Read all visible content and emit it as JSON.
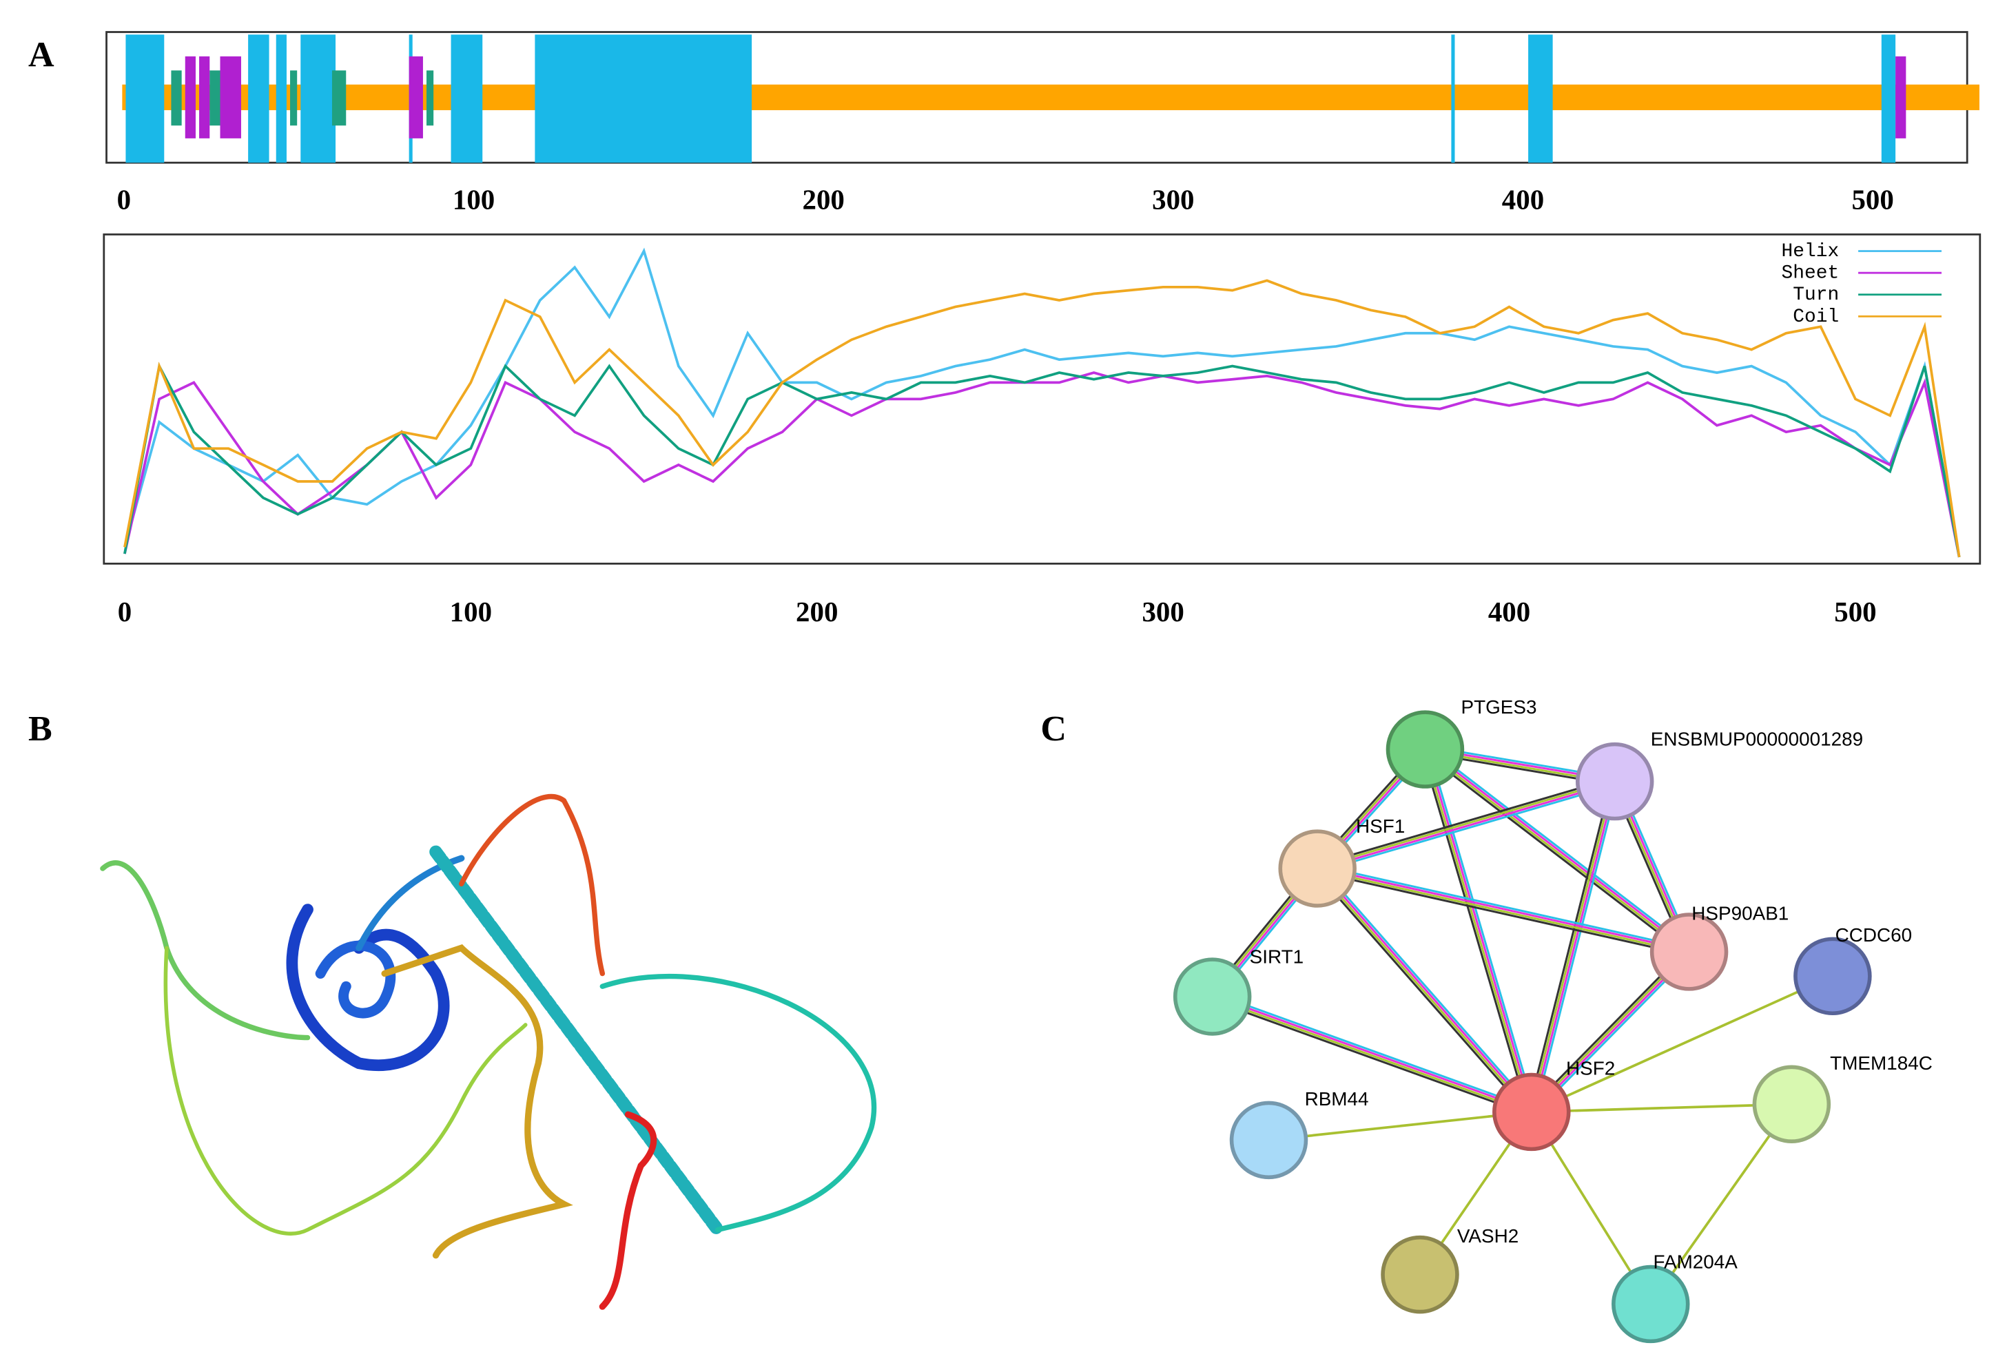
{
  "panels": [
    "A",
    "B",
    "C"
  ],
  "chart_data": [
    {
      "type": "track",
      "xlim": [
        -5,
        527
      ],
      "xticks": [
        0,
        100,
        200,
        300,
        400,
        500
      ],
      "coil": [
        [
          0,
          530
        ]
      ],
      "helix": [
        [
          1,
          11
        ],
        [
          36,
          41
        ],
        [
          44,
          46
        ],
        [
          51,
          60
        ],
        [
          82,
          82
        ],
        [
          94,
          102
        ],
        [
          118,
          179
        ],
        [
          380,
          380
        ],
        [
          402,
          408
        ],
        [
          503,
          506
        ]
      ],
      "turn": [
        [
          14,
          16
        ],
        [
          25,
          27
        ],
        [
          48,
          49
        ],
        [
          60,
          63
        ],
        [
          87,
          88
        ]
      ],
      "sheet": [
        [
          18,
          20
        ],
        [
          22,
          24
        ],
        [
          28,
          33
        ],
        [
          82,
          85
        ],
        [
          507,
          509
        ]
      ],
      "colors": {
        "coil": "#ffa500",
        "helix": "#1ab8e8",
        "turn": "#20a080",
        "sheet": "#b020d0"
      }
    },
    {
      "type": "line",
      "xlim": [
        -6,
        536
      ],
      "xticks": [
        0,
        100,
        200,
        300,
        400,
        500
      ],
      "ylim": [
        0,
        1
      ],
      "legend": "upper right",
      "x": [
        0,
        10,
        20,
        30,
        40,
        50,
        60,
        70,
        80,
        90,
        100,
        110,
        120,
        130,
        140,
        150,
        160,
        170,
        180,
        190,
        200,
        210,
        220,
        230,
        240,
        250,
        260,
        270,
        280,
        290,
        300,
        310,
        320,
        330,
        340,
        350,
        360,
        370,
        380,
        390,
        400,
        410,
        420,
        430,
        440,
        450,
        460,
        470,
        480,
        490,
        500,
        510,
        520,
        530
      ],
      "series": [
        {
          "name": "Helix",
          "color": "#4cc0f0",
          "values": [
            0.05,
            0.43,
            0.35,
            0.3,
            0.25,
            0.33,
            0.2,
            0.18,
            0.25,
            0.3,
            0.42,
            0.6,
            0.8,
            0.9,
            0.75,
            0.95,
            0.6,
            0.45,
            0.7,
            0.55,
            0.55,
            0.5,
            0.55,
            0.57,
            0.6,
            0.62,
            0.65,
            0.62,
            0.63,
            0.64,
            0.63,
            0.64,
            0.63,
            0.64,
            0.65,
            0.66,
            0.68,
            0.7,
            0.7,
            0.68,
            0.72,
            0.7,
            0.68,
            0.66,
            0.65,
            0.6,
            0.58,
            0.6,
            0.55,
            0.45,
            0.4,
            0.3,
            0.6,
            0.02
          ]
        },
        {
          "name": "Sheet",
          "color": "#c030e0",
          "values": [
            0.03,
            0.5,
            0.55,
            0.4,
            0.25,
            0.15,
            0.22,
            0.3,
            0.4,
            0.2,
            0.3,
            0.55,
            0.5,
            0.4,
            0.35,
            0.25,
            0.3,
            0.25,
            0.35,
            0.4,
            0.5,
            0.45,
            0.5,
            0.5,
            0.52,
            0.55,
            0.55,
            0.55,
            0.58,
            0.55,
            0.57,
            0.55,
            0.56,
            0.57,
            0.55,
            0.52,
            0.5,
            0.48,
            0.47,
            0.5,
            0.48,
            0.5,
            0.48,
            0.5,
            0.55,
            0.5,
            0.42,
            0.45,
            0.4,
            0.42,
            0.35,
            0.3,
            0.55,
            0.02
          ]
        },
        {
          "name": "Turn",
          "color": "#10a080",
          "values": [
            0.03,
            0.6,
            0.4,
            0.3,
            0.2,
            0.15,
            0.2,
            0.3,
            0.4,
            0.3,
            0.35,
            0.6,
            0.5,
            0.45,
            0.6,
            0.45,
            0.35,
            0.3,
            0.5,
            0.55,
            0.5,
            0.52,
            0.5,
            0.55,
            0.55,
            0.57,
            0.55,
            0.58,
            0.56,
            0.58,
            0.57,
            0.58,
            0.6,
            0.58,
            0.56,
            0.55,
            0.52,
            0.5,
            0.5,
            0.52,
            0.55,
            0.52,
            0.55,
            0.55,
            0.58,
            0.52,
            0.5,
            0.48,
            0.45,
            0.4,
            0.35,
            0.28,
            0.6,
            0.02
          ]
        },
        {
          "name": "Coil",
          "color": "#f0a820",
          "values": [
            0.05,
            0.6,
            0.35,
            0.35,
            0.3,
            0.25,
            0.25,
            0.35,
            0.4,
            0.38,
            0.55,
            0.8,
            0.75,
            0.55,
            0.65,
            0.55,
            0.45,
            0.3,
            0.4,
            0.55,
            0.62,
            0.68,
            0.72,
            0.75,
            0.78,
            0.8,
            0.82,
            0.8,
            0.82,
            0.83,
            0.84,
            0.84,
            0.83,
            0.86,
            0.82,
            0.8,
            0.77,
            0.75,
            0.7,
            0.72,
            0.78,
            0.72,
            0.7,
            0.74,
            0.76,
            0.7,
            0.68,
            0.65,
            0.7,
            0.72,
            0.5,
            0.45,
            0.72,
            0.02
          ]
        }
      ]
    }
  ],
  "network": {
    "nodes": [
      {
        "label": "PTGES3",
        "color": "#70d080"
      },
      {
        "label": "ENSBMUP00000001289",
        "color": "#d8c4f8"
      },
      {
        "label": "HSF1",
        "color": "#f8d8b8"
      },
      {
        "label": "HSP90AB1",
        "color": "#f8b8b8"
      },
      {
        "label": "CCDC60",
        "color": "#7d8fd8"
      },
      {
        "label": "SIRT1",
        "color": "#90e8c0"
      },
      {
        "label": "HSF2",
        "color": "#f87878"
      },
      {
        "label": "TMEM184C",
        "color": "#d8f8b0"
      },
      {
        "label": "RBM44",
        "color": "#a8daf8"
      },
      {
        "label": "VASH2",
        "color": "#c8c070"
      },
      {
        "label": "FAM204A",
        "color": "#70e0d0"
      }
    ]
  }
}
